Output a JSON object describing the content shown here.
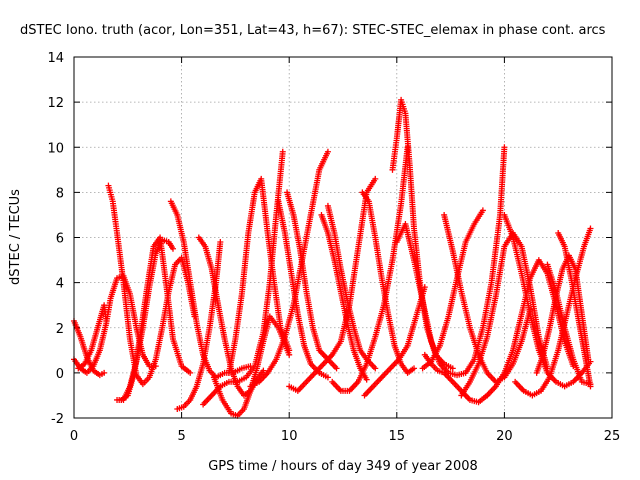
{
  "chart_data": {
    "type": "scatter",
    "title": "dSTEC Iono. truth (acor, Lon=351, Lat=43, h=67): STEC-STEC_elemax in phase cont. arcs",
    "xlabel": "GPS time / hours of day 349 of year 2008",
    "ylabel": "dSTEC  / TECUs",
    "xlim": [
      0,
      25
    ],
    "ylim": [
      -2,
      14
    ],
    "xticks": [
      0,
      5,
      10,
      15,
      20,
      25
    ],
    "yticks": [
      -2,
      0,
      2,
      4,
      6,
      8,
      10,
      12,
      14
    ],
    "grid": true,
    "marker": "+",
    "color": "#ff0000",
    "series": [
      {
        "x": [
          0.0,
          0.3,
          0.6,
          0.9,
          1.2,
          1.5,
          1.7,
          2.0,
          2.3,
          2.6,
          2.9,
          3.2,
          3.5,
          3.8
        ],
        "values": [
          0.6,
          0.2,
          0.0,
          0.3,
          1.0,
          2.2,
          3.3,
          4.2,
          4.3,
          3.5,
          2.0,
          0.8,
          0.3,
          0.3
        ]
      },
      {
        "x": [
          0.0,
          0.3,
          0.6,
          0.9,
          1.2,
          1.4
        ],
        "values": [
          2.3,
          1.6,
          0.7,
          0.1,
          -0.1,
          0.0
        ]
      },
      {
        "x": [
          0.2,
          0.5,
          0.8,
          1.1,
          1.4,
          1.5
        ],
        "values": [
          0.2,
          0.4,
          1.0,
          2.0,
          3.0,
          2.3
        ]
      },
      {
        "x": [
          1.6,
          1.8,
          2.0,
          2.3,
          2.6,
          2.9,
          3.2,
          3.5,
          3.8,
          4.1,
          4.4,
          4.7,
          5.0,
          5.3,
          5.6
        ],
        "values": [
          8.3,
          7.6,
          6.2,
          4.0,
          1.5,
          -0.1,
          -0.5,
          -0.2,
          0.6,
          2.0,
          3.6,
          4.8,
          5.1,
          4.0,
          2.5
        ]
      },
      {
        "x": [
          2.0,
          2.3,
          2.6,
          2.9,
          3.2,
          3.5,
          3.8,
          4.1,
          4.4,
          4.6
        ],
        "values": [
          -1.2,
          -1.2,
          -0.6,
          0.5,
          2.0,
          3.8,
          5.3,
          5.9,
          5.8,
          5.5
        ]
      },
      {
        "x": [
          2.2,
          2.5,
          2.8,
          3.1,
          3.4,
          3.7,
          4.0,
          4.3,
          4.6,
          5.0,
          5.4
        ],
        "values": [
          -1.2,
          -1.0,
          0.0,
          1.8,
          3.8,
          5.6,
          6.0,
          3.8,
          1.5,
          0.3,
          0.0
        ]
      },
      {
        "x": [
          4.5,
          4.8,
          5.1,
          5.4,
          5.7,
          6.0,
          6.3,
          6.6,
          7.0,
          7.4,
          7.8,
          8.2
        ],
        "values": [
          7.6,
          7.0,
          5.8,
          4.0,
          2.2,
          0.8,
          0.1,
          -0.2,
          0.0,
          0.0,
          0.2,
          0.3
        ]
      },
      {
        "x": [
          4.8,
          5.1,
          5.4,
          5.7,
          6.0,
          6.3,
          6.6,
          6.8
        ],
        "values": [
          -1.6,
          -1.5,
          -1.2,
          -0.6,
          0.4,
          2.0,
          4.0,
          5.8
        ]
      },
      {
        "x": [
          5.8,
          6.1,
          6.4,
          6.7,
          7.0,
          7.3,
          7.6,
          7.9,
          8.2,
          8.5,
          8.8
        ],
        "values": [
          6.0,
          5.6,
          4.6,
          3.0,
          1.5,
          0.2,
          -0.6,
          -1.0,
          -0.8,
          -0.3,
          0.1
        ]
      },
      {
        "x": [
          6.0,
          6.4,
          6.8,
          7.2,
          7.6,
          8.0,
          8.4,
          8.8,
          9.1,
          9.4,
          9.7
        ],
        "values": [
          -1.4,
          -1.0,
          -0.6,
          -0.4,
          -0.4,
          -0.2,
          0.3,
          1.8,
          4.0,
          7.0,
          9.8
        ]
      },
      {
        "x": [
          6.5,
          6.9,
          7.3,
          7.6,
          7.9,
          8.2,
          8.5,
          8.8,
          9.1,
          9.5,
          10.0
        ],
        "values": [
          -0.2,
          -1.2,
          -1.8,
          -1.9,
          -1.6,
          -0.8,
          0.2,
          1.4,
          2.5,
          2.0,
          0.8
        ]
      },
      {
        "x": [
          7.2,
          7.5,
          7.8,
          8.1,
          8.4,
          8.7,
          9.0,
          9.3,
          9.6,
          10.0
        ],
        "values": [
          0.0,
          1.5,
          3.5,
          6.2,
          8.0,
          8.6,
          6.2,
          4.0,
          2.0,
          1.0
        ]
      },
      {
        "x": [
          8.2,
          8.6,
          9.0,
          9.4,
          9.8,
          10.2,
          10.6,
          11.0,
          11.4,
          11.8
        ],
        "values": [
          -0.6,
          -0.4,
          0.0,
          0.6,
          1.6,
          3.0,
          5.0,
          7.0,
          9.0,
          9.8
        ]
      },
      {
        "x": [
          9.5,
          9.8,
          10.1,
          10.4,
          10.7,
          11.0,
          11.4,
          11.8
        ],
        "values": [
          7.6,
          6.2,
          4.4,
          2.6,
          1.2,
          0.4,
          0.0,
          -0.2
        ]
      },
      {
        "x": [
          9.9,
          10.2,
          10.5,
          10.8,
          11.1,
          11.4,
          11.8,
          12.2
        ],
        "values": [
          8.0,
          7.0,
          5.5,
          3.6,
          2.0,
          1.0,
          0.6,
          0.2
        ]
      },
      {
        "x": [
          10.0,
          10.4,
          10.8,
          11.2,
          11.6,
          12.0,
          12.4,
          12.8,
          13.2,
          13.6,
          14.0
        ],
        "values": [
          -0.6,
          -0.8,
          -0.4,
          0.0,
          0.4,
          0.8,
          1.4,
          3.0,
          5.5,
          8.0,
          8.6
        ]
      },
      {
        "x": [
          11.5,
          11.8,
          12.1,
          12.4,
          12.7,
          13.0,
          13.3,
          13.6
        ],
        "values": [
          7.0,
          6.2,
          5.0,
          3.6,
          2.2,
          1.0,
          0.2,
          -0.3
        ]
      },
      {
        "x": [
          11.8,
          12.1,
          12.4,
          12.7,
          13.0,
          13.3,
          13.6,
          14.0
        ],
        "values": [
          7.4,
          6.2,
          4.6,
          3.2,
          2.0,
          1.0,
          0.6,
          0.2
        ]
      },
      {
        "x": [
          12.0,
          12.4,
          12.8,
          13.2,
          13.6,
          14.0,
          14.4,
          14.8,
          15.2,
          15.5
        ],
        "values": [
          -0.4,
          -0.8,
          -0.8,
          -0.4,
          0.4,
          1.6,
          3.0,
          5.0,
          7.5,
          10.0
        ]
      },
      {
        "x": [
          13.4,
          13.7,
          14.0,
          14.3,
          14.6,
          14.9,
          15.2,
          15.5,
          15.8
        ],
        "values": [
          8.0,
          7.6,
          6.0,
          4.2,
          2.6,
          1.2,
          0.4,
          0.0,
          0.2
        ]
      },
      {
        "x": [
          14.8,
          15.0,
          15.2,
          15.4,
          15.6,
          15.8,
          16.1,
          16.4,
          16.8,
          17.2,
          17.6
        ],
        "values": [
          9.0,
          10.4,
          12.1,
          11.5,
          9.2,
          6.4,
          3.8,
          2.0,
          0.8,
          0.4,
          0.2
        ]
      },
      {
        "x": [
          13.5,
          13.9,
          14.3,
          14.7,
          15.1,
          15.5,
          15.9,
          16.3
        ],
        "values": [
          -1.0,
          -0.6,
          -0.2,
          0.2,
          0.6,
          1.2,
          2.5,
          3.8
        ]
      },
      {
        "x": [
          15.0,
          15.4,
          15.8,
          16.2,
          16.6,
          17.0,
          17.4,
          17.8,
          18.2,
          18.6,
          19.0,
          19.4,
          19.8,
          20.0
        ],
        "values": [
          5.8,
          6.6,
          5.0,
          3.2,
          1.4,
          0.4,
          0.0,
          -0.1,
          0.0,
          0.6,
          2.0,
          4.0,
          7.0,
          10.0
        ]
      },
      {
        "x": [
          16.2,
          16.6,
          17.0,
          17.4,
          17.8,
          18.2,
          18.6,
          19.0
        ],
        "values": [
          0.2,
          0.5,
          1.2,
          2.5,
          4.2,
          5.8,
          6.6,
          7.2
        ]
      },
      {
        "x": [
          16.3,
          16.6,
          16.9,
          17.2,
          17.6,
          18.0,
          18.4,
          18.8,
          19.2
        ],
        "values": [
          0.8,
          0.4,
          0.1,
          0.0,
          -0.4,
          -0.8,
          -1.2,
          -1.3,
          -1.0
        ]
      },
      {
        "x": [
          17.2,
          17.6,
          18.0,
          18.4,
          18.8,
          19.2,
          19.6,
          20.0,
          20.4,
          20.8,
          21.2
        ],
        "values": [
          7.0,
          5.4,
          3.6,
          2.0,
          0.8,
          0.0,
          -0.4,
          -0.2,
          0.4,
          1.4,
          2.8
        ]
      },
      {
        "x": [
          18.0,
          18.4,
          18.8,
          19.2,
          19.6,
          20.0,
          20.4,
          20.8,
          21.2,
          21.6,
          22.0
        ],
        "values": [
          -1.0,
          -0.4,
          0.4,
          1.6,
          3.4,
          5.6,
          6.2,
          5.6,
          3.8,
          1.6,
          0.2
        ]
      },
      {
        "x": [
          19.2,
          19.6,
          20.0,
          20.4,
          20.8,
          21.2,
          21.6,
          22.0,
          22.4,
          22.8,
          23.2
        ],
        "values": [
          -1.0,
          -0.6,
          0.0,
          1.0,
          2.6,
          4.2,
          5.0,
          4.4,
          3.0,
          1.4,
          0.3
        ]
      },
      {
        "x": [
          20.0,
          20.4,
          20.8,
          21.2,
          21.6,
          22.0,
          22.4,
          22.8,
          23.2,
          23.6,
          24.0
        ],
        "values": [
          7.0,
          6.0,
          4.4,
          2.6,
          1.0,
          0.0,
          -0.4,
          -0.6,
          -0.4,
          0.0,
          0.5
        ]
      },
      {
        "x": [
          20.5,
          20.9,
          21.3,
          21.7,
          22.1,
          22.5,
          22.9,
          23.3,
          23.7,
          24.0
        ],
        "values": [
          -0.4,
          -0.8,
          -1.0,
          -0.8,
          -0.2,
          1.0,
          2.6,
          4.2,
          5.6,
          6.4
        ]
      },
      {
        "x": [
          21.5,
          21.8,
          22.1,
          22.4,
          22.7,
          23.0,
          23.3,
          23.6,
          23.9
        ],
        "values": [
          0.0,
          0.8,
          2.0,
          3.4,
          4.6,
          5.2,
          4.6,
          2.6,
          0.6
        ]
      },
      {
        "x": [
          22.5,
          22.8,
          23.1,
          23.4,
          23.7,
          24.0
        ],
        "values": [
          6.2,
          5.6,
          4.2,
          2.6,
          1.0,
          -0.6
        ]
      },
      {
        "x": [
          22.0,
          22.4,
          22.8,
          23.2,
          23.6,
          24.0
        ],
        "values": [
          4.8,
          3.6,
          2.0,
          0.6,
          -0.4,
          -0.5
        ]
      }
    ]
  }
}
